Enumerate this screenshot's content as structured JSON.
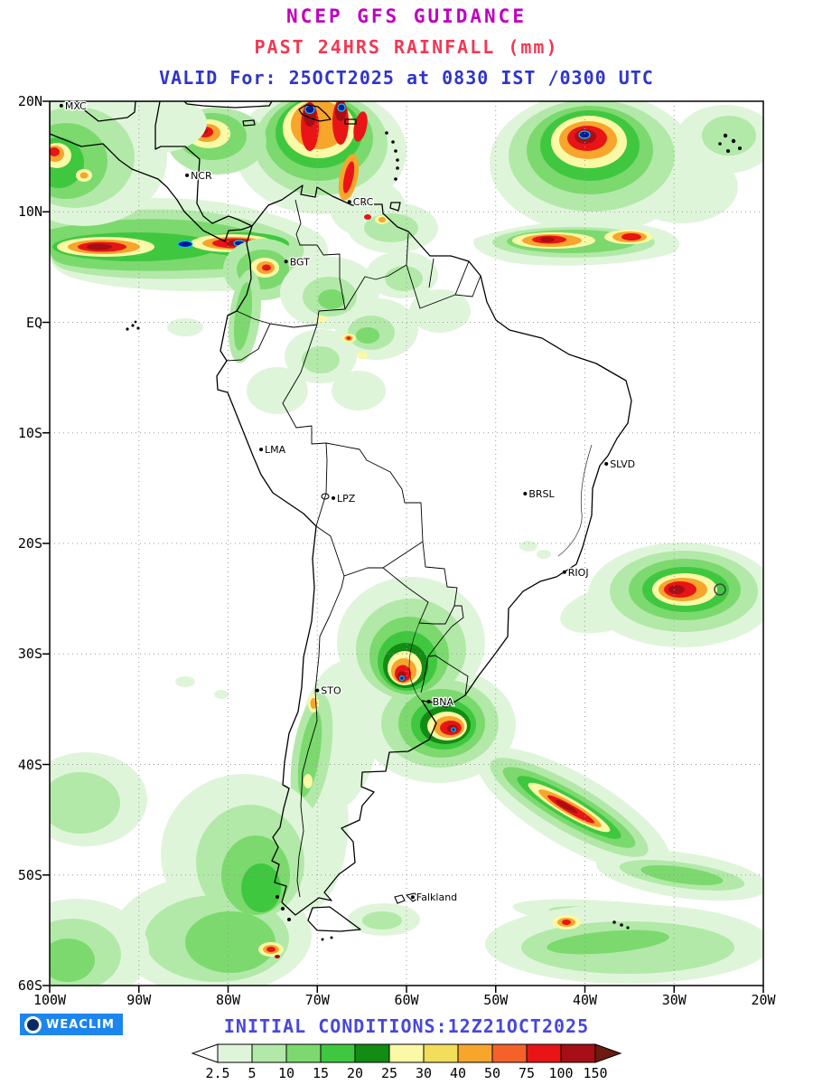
{
  "header": {
    "line1": "NCEP GFS GUIDANCE",
    "line2": "PAST 24HRS RAINFALL (mm)",
    "line3": "VALID For: 25OCT2025 at 0830 IST /0300 UTC"
  },
  "axes": {
    "lat": [
      {
        "label": "20N",
        "deg": 20
      },
      {
        "label": "10N",
        "deg": 10
      },
      {
        "label": "EQ",
        "deg": 0
      },
      {
        "label": "10S",
        "deg": -10
      },
      {
        "label": "20S",
        "deg": -20
      },
      {
        "label": "30S",
        "deg": -30
      },
      {
        "label": "40S",
        "deg": -40
      },
      {
        "label": "50S",
        "deg": -50
      },
      {
        "label": "60S",
        "deg": -60
      }
    ],
    "lon": [
      {
        "label": "100W",
        "deg": -100
      },
      {
        "label": "90W",
        "deg": -90
      },
      {
        "label": "80W",
        "deg": -80
      },
      {
        "label": "70W",
        "deg": -70
      },
      {
        "label": "60W",
        "deg": -60
      },
      {
        "label": "50W",
        "deg": -50
      },
      {
        "label": "40W",
        "deg": -40
      },
      {
        "label": "30W",
        "deg": -30
      },
      {
        "label": "20W",
        "deg": -20
      }
    ]
  },
  "stations": [
    {
      "label": "MXC",
      "lon": -98.7,
      "lat": 19.6
    },
    {
      "label": "NCR",
      "lon": -84.6,
      "lat": 13.3
    },
    {
      "label": "CRC",
      "lon": -66.4,
      "lat": 10.9
    },
    {
      "label": "BGT",
      "lon": -73.5,
      "lat": 5.5
    },
    {
      "label": "LMA",
      "lon": -76.3,
      "lat": -11.5
    },
    {
      "label": "LPZ",
      "lon": -68.2,
      "lat": -15.9
    },
    {
      "label": "BRSL",
      "lon": -46.7,
      "lat": -15.5
    },
    {
      "label": "SLVD",
      "lon": -37.6,
      "lat": -12.8
    },
    {
      "label": "RIOJ",
      "lon": -42.3,
      "lat": -22.6
    },
    {
      "label": "STO",
      "lon": -70.0,
      "lat": -33.3
    },
    {
      "label": "BNA",
      "lon": -57.5,
      "lat": -34.3
    },
    {
      "label": "Falkland",
      "lon": -59.3,
      "lat": -52.0
    }
  ],
  "colorbar": {
    "values": [
      "2.5",
      "5",
      "10",
      "15",
      "20",
      "25",
      "30",
      "40",
      "50",
      "75",
      "100",
      "150"
    ],
    "colors": [
      "#dff5da",
      "#b2e9a8",
      "#7cd96e",
      "#3fc83f",
      "#128c12",
      "#f9f9a6",
      "#f2de5a",
      "#f7a52b",
      "#f4622a",
      "#e81416",
      "#a50f15"
    ],
    "below_color": "#ffffff",
    "above_color": "#6d1a10"
  },
  "extremes": {
    "navy": "#001796",
    "cyan": "#00c8ff"
  },
  "title_colors": {
    "line1": "#bf00bf",
    "line2": "#ee3a55",
    "line3": "#2f35cc",
    "footer": "#4747dc"
  },
  "footer": {
    "logo_text": "WEACLIM",
    "initial_conditions": "INITIAL CONDITIONS:12Z21OCT2025"
  }
}
